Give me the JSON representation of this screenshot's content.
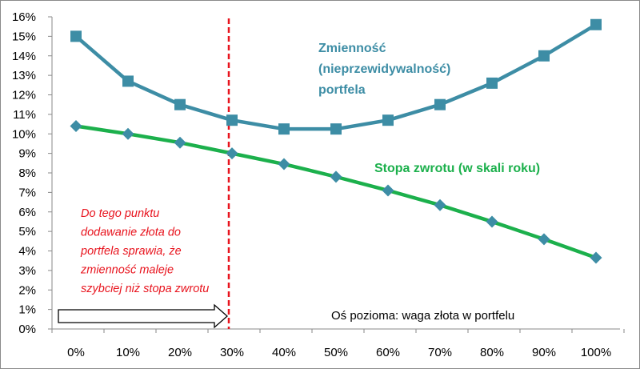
{
  "chart_data": {
    "type": "line",
    "categories": [
      "0%",
      "10%",
      "20%",
      "30%",
      "40%",
      "50%",
      "60%",
      "70%",
      "80%",
      "90%",
      "100%"
    ],
    "x": [
      0,
      10,
      20,
      30,
      40,
      50,
      60,
      70,
      80,
      90,
      100
    ],
    "series": [
      {
        "name_lines": [
          "Zmienność",
          "(nieprzewidywalność)",
          "portfela"
        ],
        "values": [
          15.0,
          12.7,
          11.5,
          10.7,
          10.25,
          10.25,
          10.7,
          11.5,
          12.6,
          14.0,
          15.6
        ],
        "color": "#3d8da5",
        "marker": "square"
      },
      {
        "name": "Stopa zwrotu (w skali roku)",
        "values": [
          10.4,
          10.0,
          9.55,
          9.0,
          8.45,
          7.8,
          7.1,
          6.35,
          5.5,
          4.6,
          3.65
        ],
        "color": "#1cb04c",
        "marker": "diamond"
      }
    ],
    "y_ticks": [
      "0%",
      "1%",
      "2%",
      "3%",
      "4%",
      "5%",
      "6%",
      "7%",
      "8%",
      "9%",
      "10%",
      "11%",
      "12%",
      "13%",
      "14%",
      "15%",
      "16%"
    ],
    "ylim": [
      0,
      16
    ],
    "grid": false,
    "vertical_marker": {
      "x": 30,
      "color": "#e8141e",
      "style": "dashed"
    },
    "annotation_lines": [
      "Do tego punktu",
      "dodawanie złota do",
      "portfela sprawia, że",
      "zmienność maleje",
      "szybciej niż stopa zwrotu"
    ],
    "axis_note": "Oś pozioma: waga złota w portfelu",
    "arrow": {
      "from_x": 0,
      "to_x": 30,
      "direction": "right"
    },
    "marker_fill": "#3d8da5",
    "diamond_fill": "#3d8da5"
  }
}
